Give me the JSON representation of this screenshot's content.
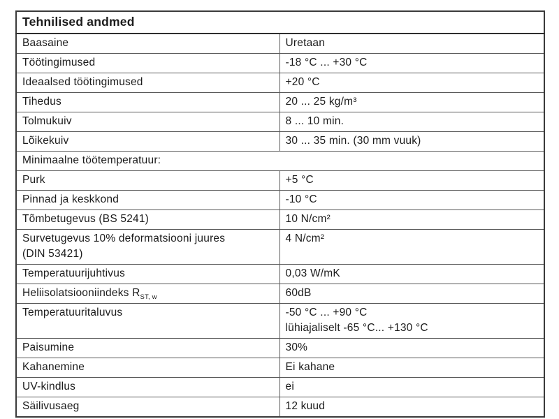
{
  "title": "Tehnilised andmed",
  "table": {
    "rows": [
      {
        "label": "Baasaine",
        "value": "Uretaan"
      },
      {
        "label": "Töötingimused",
        "value": "-18 °C ... +30 °C"
      },
      {
        "label": "Ideaalsed töötingimused",
        "value": "+20 °C"
      },
      {
        "label": "Tihedus",
        "value": "20 ... 25 kg/m³"
      },
      {
        "label": "Tolmukuiv",
        "value": "8 ... 10 min."
      },
      {
        "label": "Lõikekuiv",
        "value": "30 ... 35 min. (30 mm vuuk)"
      },
      {
        "label": "Minimaalne töötemperatuur:",
        "value": ""
      },
      {
        "label": "Purk",
        "value": "+5 °C"
      },
      {
        "label": "Pinnad ja keskkond",
        "value": "-10 °C"
      },
      {
        "label": "Tõmbetugevus (BS 5241)",
        "value": "10 N/cm²"
      },
      {
        "label": "Survetugevus 10% deformatsiooni juures",
        "label_line2": "(DIN 53421)",
        "value": "4 N/cm²"
      },
      {
        "label": "Temperatuurijuhtivus",
        "value": "0,03 W/mK"
      },
      {
        "label": "Heliisolatsiooniindeks R",
        "label_sub": "ST, w",
        "value": "60dB"
      },
      {
        "label": "Temperatuuritaluvus",
        "value": "-50 °C ... +90 °C",
        "value_line2": "lühiajaliselt -65 °C... +130 °C"
      },
      {
        "label": "Paisumine",
        "value": "30%"
      },
      {
        "label": "Kahanemine",
        "value": "Ei kahane"
      },
      {
        "label": "UV-kindlus",
        "value": "ei"
      },
      {
        "label": "Säilivusaeg",
        "value": "12 kuud"
      }
    ]
  },
  "colors": {
    "border_inner": "#595959",
    "border_outer": "#3a3a3a",
    "text": "#1c1c1c",
    "background": "#ffffff"
  }
}
